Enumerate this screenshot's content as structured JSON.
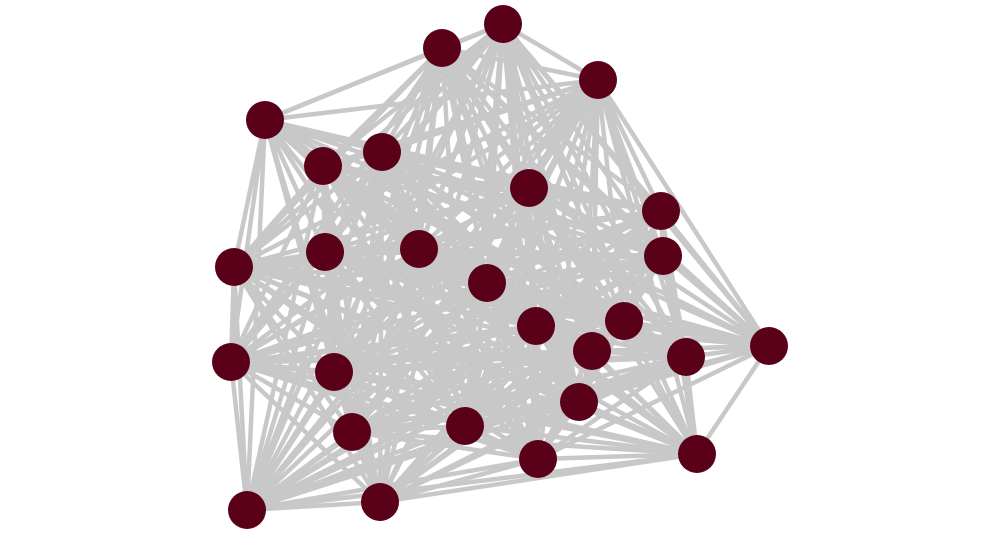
{
  "graph": {
    "node_color": "#5a0019",
    "edge_color": "#c8c8c8",
    "nodes": [
      "n1",
      "n2",
      "n3",
      "n4",
      "n5",
      "n6",
      "n7",
      "n8",
      "n9",
      "n10",
      "n11",
      "n12",
      "n13",
      "n14",
      "n15",
      "n16",
      "n17",
      "n18",
      "n19",
      "n20",
      "n21",
      "n22",
      "n23",
      "n24",
      "n25",
      "n26",
      "n27"
    ],
    "edges_complete": true,
    "node_18_neighbors": [
      "n1",
      "n2",
      "n3",
      "n4",
      "n5",
      "n7",
      "n8",
      "n9",
      "n10",
      "n12",
      "n13",
      "n14",
      "n15",
      "n16",
      "n17",
      "n19",
      "n21",
      "n23",
      "n24",
      "n25"
    ]
  }
}
